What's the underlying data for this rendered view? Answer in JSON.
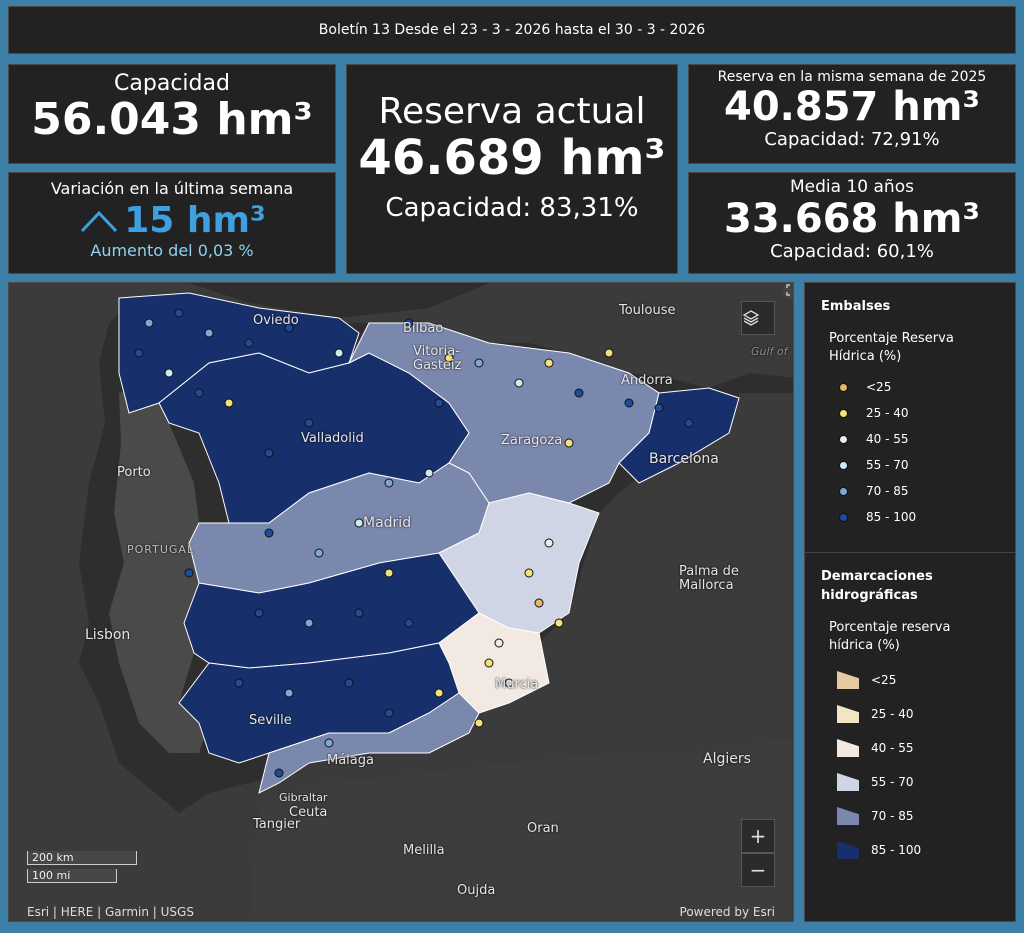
{
  "header": {
    "title": "Boletín 13 Desde el 23 - 3 - 2026 hasta el 30 - 3 - 2026"
  },
  "capacity": {
    "label": "Capacidad",
    "value": "56.043 hm³"
  },
  "variation": {
    "label": "Variación en la última semana",
    "value": "15 hm³",
    "sub": "Aumento del 0,03 %",
    "color": "#3fa0e0",
    "arrow_icon": "chevron-up-icon"
  },
  "current": {
    "label": "Reserva actual",
    "value": "46.689 hm³",
    "sub": "Capacidad: 83,31%"
  },
  "last_year": {
    "label": "Reserva en la misma semana de 2025",
    "value": "40.857 hm³",
    "sub": "Capacidad: 72,91%"
  },
  "avg10": {
    "label": "Media 10 años",
    "value": "33.668 hm³",
    "sub": "Capacidad: 60,1%"
  },
  "map": {
    "labels": {
      "oviedo": "Oviedo",
      "bilbao": "Bilbao",
      "vitoria": "Vitoria-\nGasteiz",
      "andorra": "Andorra",
      "toulouse": "Toulouse",
      "gulf": "Gulf of",
      "valladolid": "Valladolid",
      "zaragoza": "Zaragoza",
      "barcelona": "Barcelona",
      "porto": "Porto",
      "portugal": "PORTUGAL",
      "madrid": "Madrid",
      "lisbon": "Lisbon",
      "palma": "Palma de\nMallorca",
      "murcia": "Murcia",
      "seville": "Seville",
      "malaga": "Málaga",
      "gibraltar": "Gibraltar",
      "ceuta": "Ceuta",
      "tangier": "Tangier",
      "algiers": "Algiers",
      "oran": "Oran",
      "melilla": "Melilla",
      "oujda": "Oujda"
    },
    "zoom_in": "+",
    "zoom_out": "−",
    "scale_km": "200 km",
    "scale_mi": "100 mi",
    "attribution": "Esri | HERE | Garmin | USGS",
    "powered": "Powered by Esri",
    "layers_icon": "layers-icon",
    "expand_icon": "expand-icon"
  },
  "legend": {
    "embalses_title": "Embalses",
    "embalses_sub": "Porcentaje Reserva Hídrica (%)",
    "embalses_items": [
      {
        "label": "<25",
        "color": "#e8b66a"
      },
      {
        "label": "25 - 40",
        "color": "#f3e27a"
      },
      {
        "label": "40 - 55",
        "color": "#eeeeee"
      },
      {
        "label": "55 - 70",
        "color": "#c9ecf2"
      },
      {
        "label": "70 - 85",
        "color": "#7fa6d8"
      },
      {
        "label": "85 - 100",
        "color": "#1d4c9a"
      }
    ],
    "demarc_title": "Demarcaciones hidrográficas",
    "demarc_sub": "Porcentaje reserva hídrica (%)",
    "demarc_items": [
      {
        "label": "<25",
        "color": "#e5c9a2"
      },
      {
        "label": "25 - 40",
        "color": "#f3e4c6"
      },
      {
        "label": "40 - 55",
        "color": "#f2eae2"
      },
      {
        "label": "55 - 70",
        "color": "#cfd5e5"
      },
      {
        "label": "70 - 85",
        "color": "#7b88ae"
      },
      {
        "label": "85 - 100",
        "color": "#172f6b"
      }
    ]
  }
}
